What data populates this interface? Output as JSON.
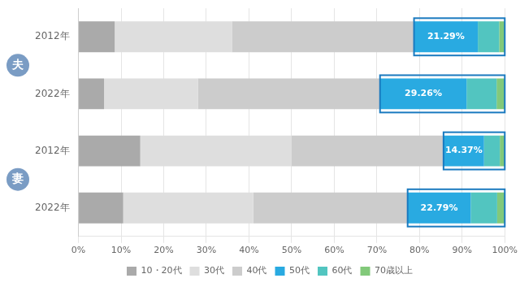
{
  "chart_data": {
    "type": "bar",
    "orientation": "horizontal",
    "stacked": true,
    "categories": [
      "2012年",
      "2022年",
      "2012年",
      "2022年"
    ],
    "groups": [
      "夫",
      "夫",
      "妻",
      "妻"
    ],
    "series": [
      {
        "name": "10・20代",
        "color": "#aaaaaa",
        "values": [
          8.5,
          6.0,
          14.5,
          10.5
        ]
      },
      {
        "name": "30代",
        "color": "#dedede",
        "values": [
          27.5,
          22.0,
          35.5,
          30.5
        ]
      },
      {
        "name": "40代",
        "color": "#cccccc",
        "values": [
          42.71,
          42.74,
          35.63,
          36.21
        ]
      },
      {
        "name": "50代",
        "color": "#29aae1",
        "values": [
          14.97,
          20.3,
          9.5,
          14.8
        ]
      },
      {
        "name": "60代",
        "color": "#52c5c0",
        "values": [
          5.0,
          7.04,
          3.7,
          6.2
        ]
      },
      {
        "name": "70歳以上",
        "color": "#82c97a",
        "values": [
          1.32,
          1.92,
          1.17,
          1.79
        ]
      }
    ],
    "callouts": [
      {
        "series": "50代",
        "value": 21.29,
        "label": "21.29%"
      },
      {
        "series": "50代",
        "value": 29.26,
        "label": "29.26%"
      },
      {
        "series": "50代",
        "value": 14.37,
        "label": "14.37%"
      },
      {
        "series": "50代",
        "value": 22.79,
        "label": "22.79%"
      }
    ],
    "xlim": [
      0,
      100
    ],
    "xticks": [
      {
        "value": 0,
        "label": "0%"
      },
      {
        "value": 10,
        "label": "10%"
      },
      {
        "value": 20,
        "label": "20%"
      },
      {
        "value": 30,
        "label": "30%"
      },
      {
        "value": 40,
        "label": "40%"
      },
      {
        "value": 50,
        "label": "50%"
      },
      {
        "value": 60,
        "label": "60%"
      },
      {
        "value": 70,
        "label": "70%"
      },
      {
        "value": 80,
        "label": "80%"
      },
      {
        "value": 90,
        "label": "90%"
      },
      {
        "value": 100,
        "label": "100%"
      }
    ],
    "grid": true,
    "legend": "bottom"
  }
}
